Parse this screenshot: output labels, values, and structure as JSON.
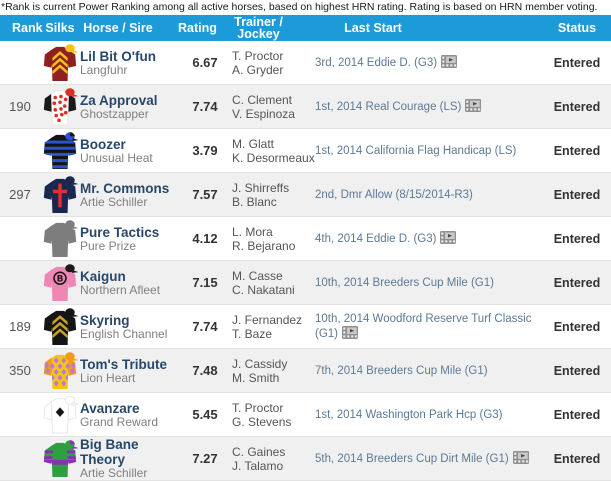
{
  "note": "*Rank is current Power Ranking among all active horses, based on highest HRN rating. Rating is based on HRN member voting.",
  "colors": {
    "header_bg": "#1d9bd8",
    "header_text": "#ffffff",
    "row_bg": "#ffffff",
    "row_alt_bg": "#f0f0f0",
    "border": "#e3e3e3",
    "note_text": "#1a1a1a",
    "rank_text": "#555555",
    "horse_link": "#27486b",
    "sire_text": "#808080",
    "rating_text": "#333333",
    "trainer_text": "#555555",
    "last_start_link": "#5c7a96",
    "status_text": "#333333"
  },
  "table": {
    "columns": [
      "Rank",
      "Silks",
      "Horse / Sire",
      "Rating",
      "Trainer / Jockey",
      "Last Start",
      "Status"
    ],
    "rows": [
      {
        "rank": "",
        "horse": "Lil Bit O'fun",
        "sire": "Langfuhr",
        "rating": "6.67",
        "trainer": "T. Proctor",
        "jockey": "A. Gryder",
        "last_start": "3rd, 2014 Eddie D. (G3)",
        "video": true,
        "status": "Entered",
        "silk": {
          "body": "#8e2020",
          "sleeves": "#8e2020",
          "pattern": "chevrons",
          "patternColor": "#f2c21a",
          "scope": "body",
          "cap": "#f2c21a"
        }
      },
      {
        "rank": "190",
        "horse": "Za Approval",
        "sire": "Ghostzapper",
        "rating": "7.74",
        "trainer": "C. Clement",
        "jockey": "V. Espinoza",
        "last_start": "1st, 2014 Real Courage (LS)",
        "video": true,
        "status": "Entered",
        "silk": {
          "body": "#ffffff",
          "sleeves": "#1a1a1a",
          "pattern": "dots",
          "patternColor": "#d93025",
          "scope": "body",
          "cap": "#d93025"
        }
      },
      {
        "rank": "",
        "horse": "Boozer",
        "sire": "Unusual Heat",
        "rating": "3.79",
        "trainer": "M. Glatt",
        "jockey": "K. Desormeaux",
        "last_start": "1st, 2014 California Flag Handicap (LS)",
        "video": false,
        "status": "Entered",
        "silk": {
          "body": "#141414",
          "sleeves": "#141414",
          "pattern": "hoops",
          "patternColor": "#2a52cc",
          "scope": "full",
          "cap": "#2a52cc",
          "capAccent": "#141414"
        }
      },
      {
        "rank": "297",
        "horse": "Mr. Commons",
        "sire": "Artie Schiller",
        "rating": "7.57",
        "trainer": "J. Shirreffs",
        "jockey": "B. Blanc",
        "last_start": "2nd, Dmr Allow (8/15/2014-R3)",
        "video": false,
        "status": "Entered",
        "silk": {
          "body": "#1c2750",
          "sleeves": "#1c2750",
          "pattern": "cross",
          "patternColor": "#e03030",
          "scope": "body",
          "cap": "#1c2750"
        }
      },
      {
        "rank": "",
        "horse": "Pure Tactics",
        "sire": "Pure Prize",
        "rating": "4.12",
        "trainer": "L. Mora",
        "jockey": "R. Bejarano",
        "last_start": "4th, 2014 Eddie D. (G3)",
        "video": true,
        "status": "Entered",
        "silk": {
          "body": "#7d7d7d",
          "sleeves": "#7d7d7d",
          "pattern": "solid",
          "patternColor": "",
          "scope": "body",
          "cap": "#7d7d7d"
        }
      },
      {
        "rank": "",
        "horse": "Kaigun",
        "sire": "Northern Afleet",
        "rating": "7.15",
        "trainer": "M. Casse",
        "jockey": "C. Nakatani",
        "last_start": "10th, 2014 Breeders Cup Mile (G1)",
        "video": false,
        "status": "Entered",
        "silk": {
          "body": "#ef87b5",
          "sleeves": "#ef87b5",
          "pattern": "emblemB",
          "patternColor": "#1a1a1a",
          "scope": "body",
          "cap": "#1a1a1a"
        }
      },
      {
        "rank": "189",
        "horse": "Skyring",
        "sire": "English Channel",
        "rating": "7.74",
        "trainer": "J. Fernandez",
        "jockey": "T. Baze",
        "last_start": "10th, 2014 Woodford Reserve Turf Classic (G1)",
        "video": true,
        "status": "Entered",
        "silk": {
          "body": "#151515",
          "sleeves": "#151515",
          "pattern": "chevrons",
          "patternColor": "#c9a227",
          "scope": "full",
          "cap": "#151515"
        }
      },
      {
        "rank": "350",
        "horse": "Tom's Tribute",
        "sire": "Lion Heart",
        "rating": "7.48",
        "trainer": "J. Cassidy",
        "jockey": "M. Smith",
        "last_start": "7th, 2014 Breeders Cup Mile (G1)",
        "video": false,
        "status": "Entered",
        "silk": {
          "body": "#f6c21c",
          "sleeves": "#f2991c",
          "pattern": "diamonds",
          "patternColor": "#b678d9",
          "scope": "full",
          "cap": "#f2991c"
        }
      },
      {
        "rank": "",
        "horse": "Avanzare",
        "sire": "Grand Reward",
        "rating": "5.45",
        "trainer": "T. Proctor",
        "jockey": "G. Stevens",
        "last_start": "1st, 2014 Washington Park Hcp (G3)",
        "video": false,
        "status": "Entered",
        "silk": {
          "body": "#ffffff",
          "sleeves": "#ffffff",
          "pattern": "diamond",
          "patternColor": "#141414",
          "scope": "body",
          "cap": "#ffffff"
        }
      },
      {
        "rank": "",
        "horse": "Big Bane Theory",
        "sire": "Artie Schiller",
        "rating": "7.27",
        "trainer": "C. Gaines",
        "jockey": "J. Talamo",
        "last_start": "5th, 2014 Breeders Cup Dirt Mile (G1)",
        "video": true,
        "status": "Entered",
        "silk": {
          "body": "#2f9e41",
          "sleeves": "#2f9e41",
          "pattern": "band",
          "patternColor": "#8a2fb5",
          "scope": "full",
          "cap": "#2f9e41",
          "capAccent": "#8a2fb5"
        }
      }
    ]
  }
}
